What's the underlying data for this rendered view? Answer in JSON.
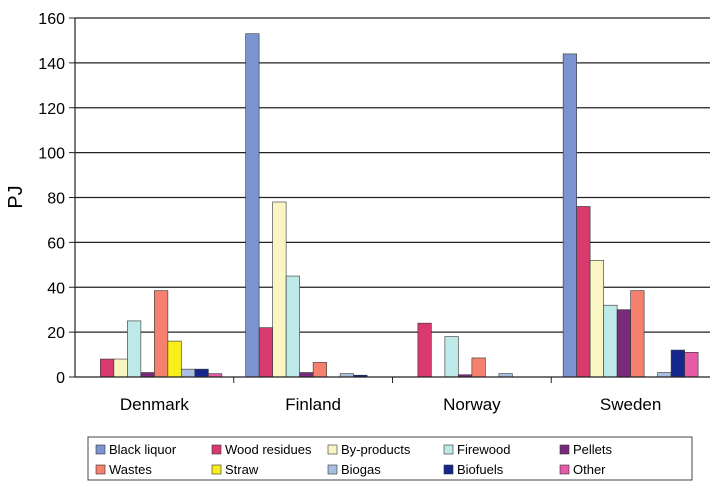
{
  "chart_data": {
    "type": "bar",
    "ylabel": "PJ",
    "ylim": [
      0,
      160
    ],
    "yticks": [
      0,
      20,
      40,
      60,
      80,
      100,
      120,
      140,
      160
    ],
    "grid": true,
    "legend_position": "bottom",
    "categories": [
      "Denmark",
      "Finland",
      "Norway",
      "Sweden"
    ],
    "series": [
      {
        "name": "Black liquor",
        "color": "#7b93cf",
        "values": [
          0,
          153,
          0,
          144
        ]
      },
      {
        "name": "Wood residues",
        "color": "#d83a6e",
        "values": [
          8,
          22,
          24,
          76
        ]
      },
      {
        "name": "By-products",
        "color": "#f9f6c3",
        "values": [
          8,
          78,
          0,
          52
        ]
      },
      {
        "name": "Firewood",
        "color": "#bde9e9",
        "values": [
          25,
          45,
          18,
          32
        ]
      },
      {
        "name": "Pellets",
        "color": "#7a2a7a",
        "values": [
          2,
          2,
          1,
          30
        ]
      },
      {
        "name": "Wastes",
        "color": "#f5806d",
        "values": [
          38.5,
          6.5,
          8.5,
          38.5
        ]
      },
      {
        "name": "Straw",
        "color": "#f8ee1c",
        "values": [
          16,
          0,
          0,
          0
        ]
      },
      {
        "name": "Biogas",
        "color": "#a9bfe0",
        "values": [
          3.5,
          1.5,
          1.5,
          2
        ]
      },
      {
        "name": "Biofuels",
        "color": "#15278c",
        "values": [
          3.5,
          0.8,
          0,
          12
        ]
      },
      {
        "name": "Other",
        "color": "#e65aa8",
        "values": [
          1.5,
          0,
          0,
          11
        ]
      }
    ]
  }
}
